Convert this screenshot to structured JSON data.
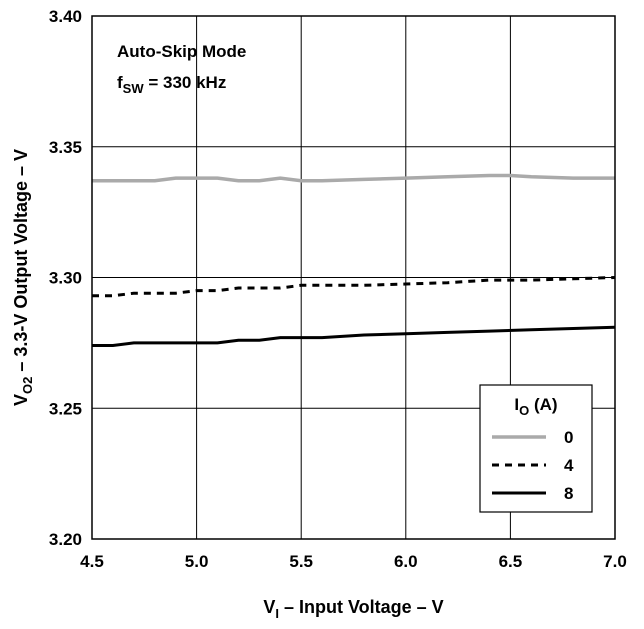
{
  "chart_data": {
    "type": "line",
    "xlabel": {
      "main": "V",
      "sub": "I",
      "rest": " – Input Voltage  –  V"
    },
    "ylabel": {
      "main": "V",
      "sub": "O2",
      "rest": " – 3.3-V Output Voltage  –  V"
    },
    "xlim": [
      4.5,
      7.0
    ],
    "ylim": [
      3.2,
      3.4
    ],
    "xticks": [
      "4.5",
      "5.0",
      "5.5",
      "6.0",
      "6.5",
      "7.0"
    ],
    "yticks": [
      "3.20",
      "3.25",
      "3.30",
      "3.35",
      "3.40"
    ],
    "grid": true,
    "annotation": {
      "line1": "Auto-Skip Mode",
      "line2_main": "f",
      "line2_sub": "SW",
      "line2_rest": " = 330 kHz"
    },
    "legend": {
      "title_main": "I",
      "title_sub": "O",
      "title_rest": " (A)",
      "placement": "bottom-right"
    },
    "series": [
      {
        "name": "0",
        "color": "#aaaaaa",
        "dash": "solid",
        "x": [
          4.5,
          4.6,
          4.7,
          4.8,
          4.9,
          5.0,
          5.1,
          5.2,
          5.3,
          5.4,
          5.5,
          5.6,
          5.8,
          6.0,
          6.2,
          6.4,
          6.5,
          6.6,
          6.8,
          7.0
        ],
        "y": [
          3.337,
          3.337,
          3.337,
          3.337,
          3.338,
          3.338,
          3.338,
          3.337,
          3.337,
          3.338,
          3.337,
          3.337,
          3.3375,
          3.338,
          3.3385,
          3.339,
          3.339,
          3.3385,
          3.338,
          3.338
        ]
      },
      {
        "name": "4",
        "color": "#000000",
        "dash": "dashed",
        "x": [
          4.5,
          4.6,
          4.7,
          4.8,
          4.9,
          5.0,
          5.1,
          5.2,
          5.3,
          5.4,
          5.5,
          5.6,
          5.8,
          6.0,
          6.2,
          6.4,
          6.6,
          6.8,
          7.0
        ],
        "y": [
          3.293,
          3.293,
          3.294,
          3.294,
          3.294,
          3.295,
          3.295,
          3.296,
          3.296,
          3.296,
          3.297,
          3.297,
          3.297,
          3.2975,
          3.298,
          3.299,
          3.299,
          3.2995,
          3.3
        ]
      },
      {
        "name": "8",
        "color": "#000000",
        "dash": "solid",
        "x": [
          4.5,
          4.6,
          4.7,
          4.8,
          4.9,
          5.0,
          5.1,
          5.2,
          5.3,
          5.4,
          5.5,
          5.6,
          5.8,
          6.0,
          6.2,
          6.4,
          6.6,
          6.8,
          7.0
        ],
        "y": [
          3.274,
          3.274,
          3.275,
          3.275,
          3.275,
          3.275,
          3.275,
          3.276,
          3.276,
          3.277,
          3.277,
          3.277,
          3.278,
          3.2785,
          3.279,
          3.2795,
          3.28,
          3.2805,
          3.281
        ]
      }
    ]
  }
}
